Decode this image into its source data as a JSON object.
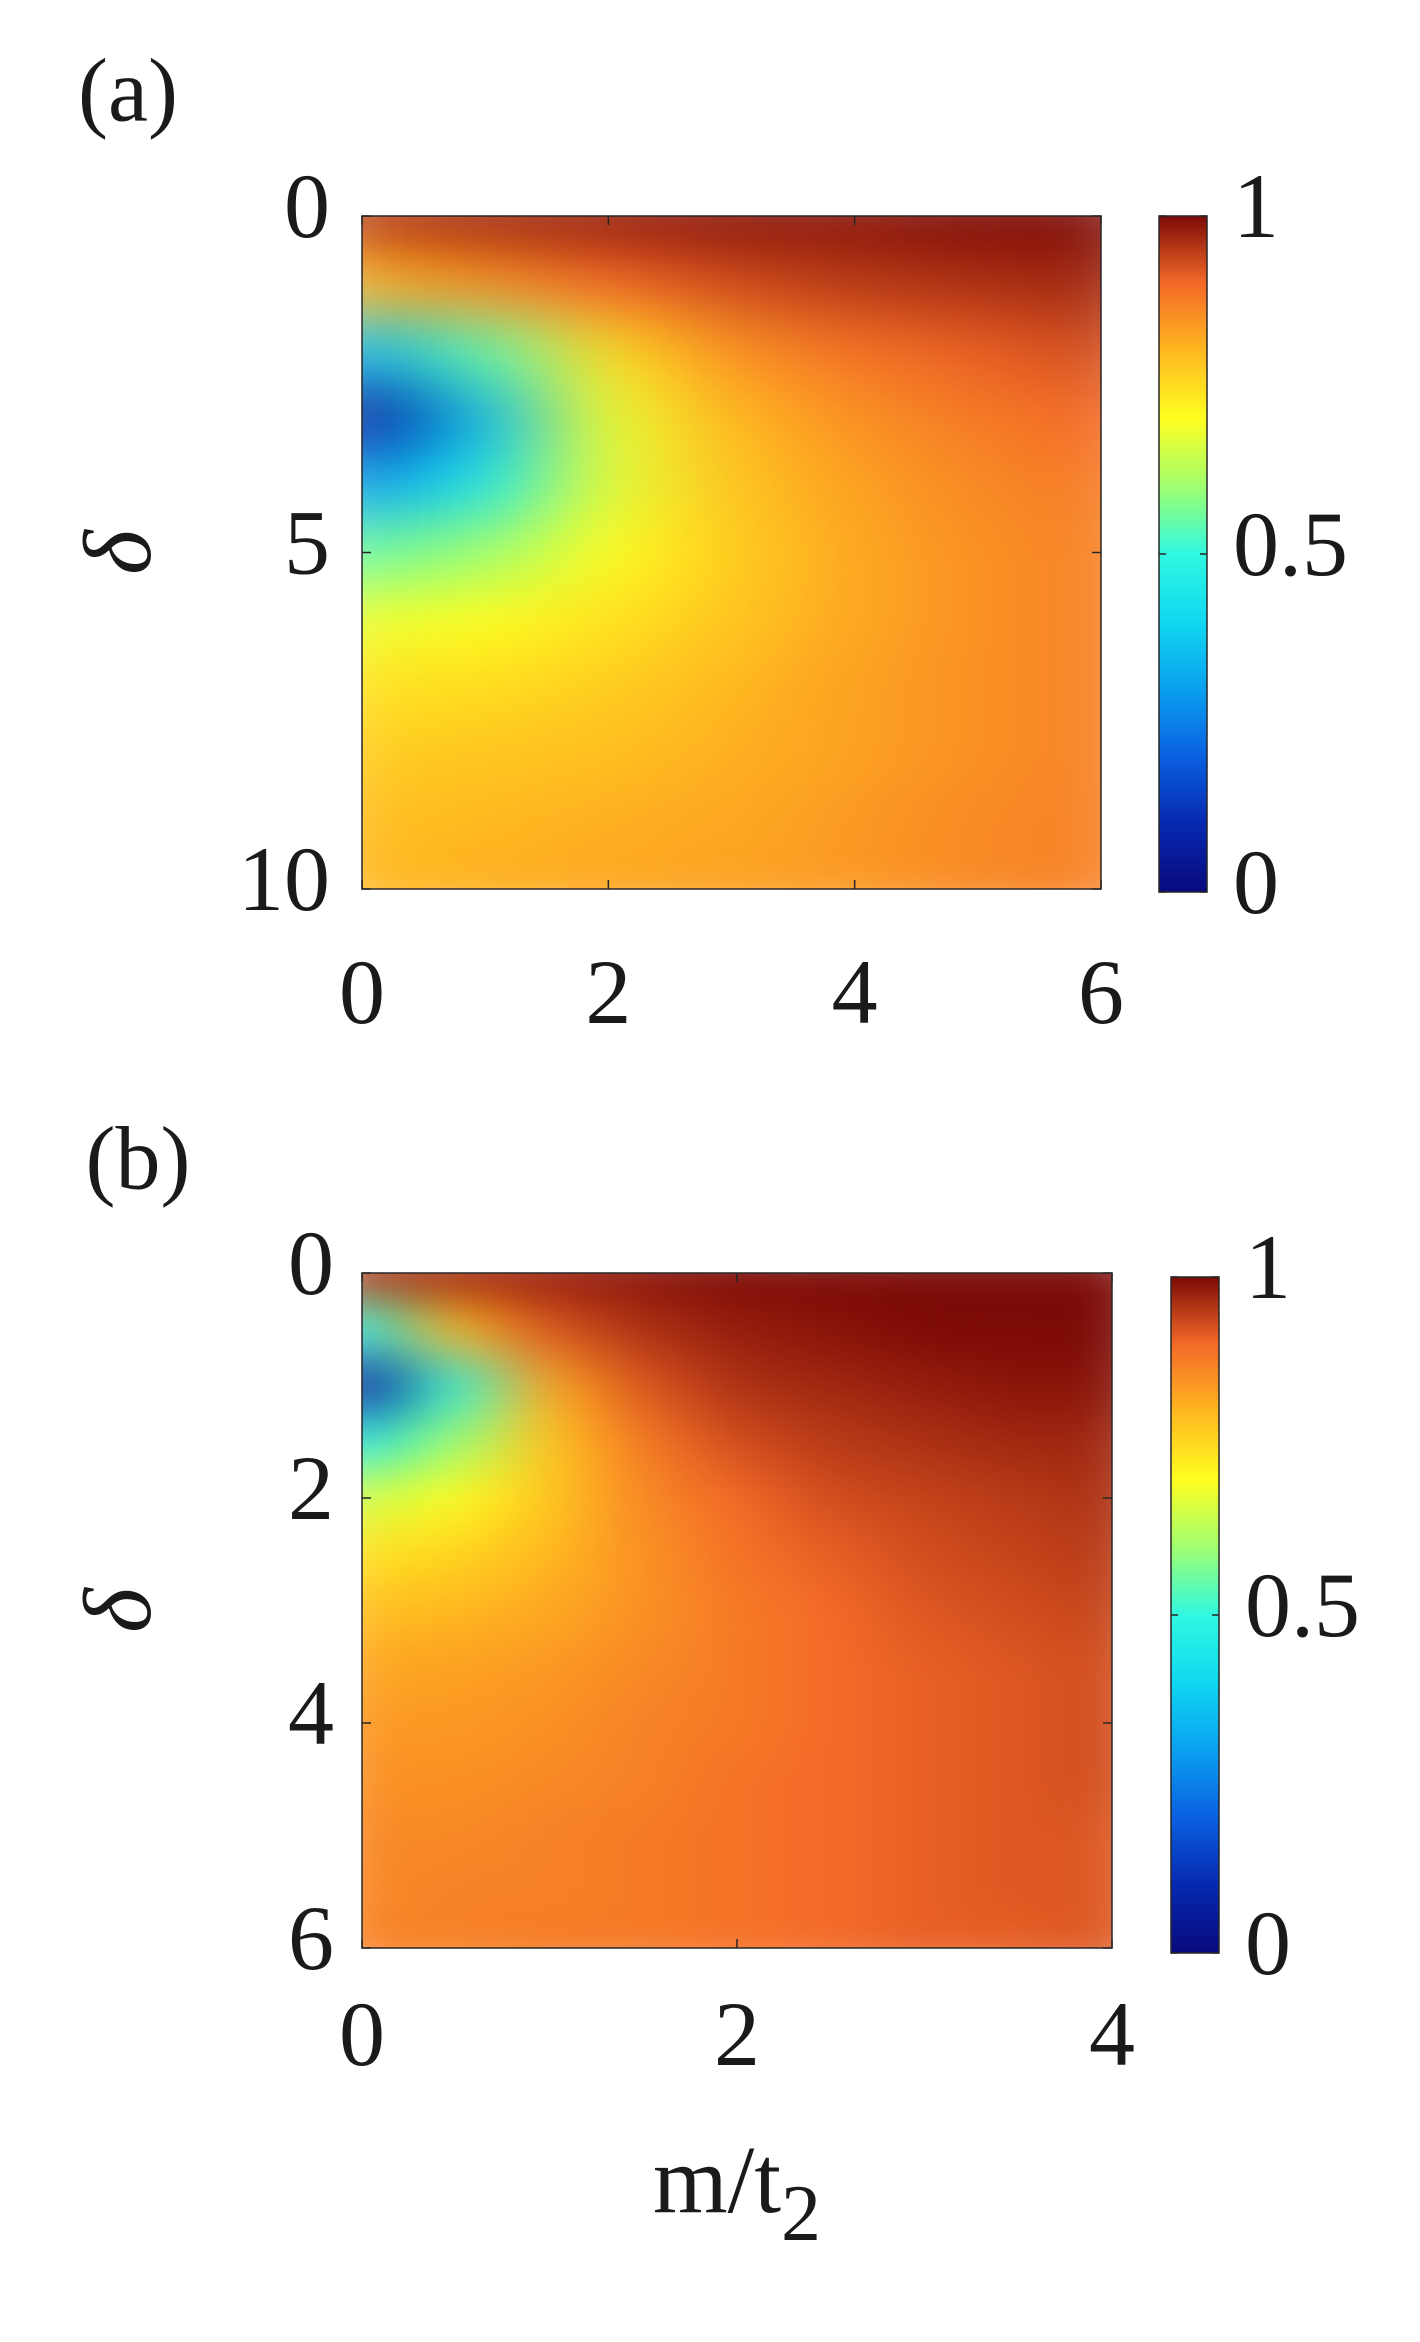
{
  "chart_data": [
    {
      "type": "heatmap",
      "label": "(a)",
      "ylabel": "δ",
      "x": [
        0,
        1,
        2,
        3,
        4,
        5,
        6
      ],
      "y": [
        0,
        1,
        2,
        3,
        4,
        5,
        6,
        7,
        8,
        9,
        10
      ],
      "values": [
        [
          0.95,
          0.97,
          0.98,
          0.99,
          0.99,
          1,
          1
        ],
        [
          0.8,
          0.85,
          0.9,
          0.93,
          0.95,
          0.96,
          0.97
        ],
        [
          0.35,
          0.55,
          0.75,
          0.85,
          0.89,
          0.91,
          0.93
        ],
        [
          0.05,
          0.35,
          0.68,
          0.8,
          0.85,
          0.88,
          0.9
        ],
        [
          0.3,
          0.45,
          0.67,
          0.78,
          0.83,
          0.86,
          0.88
        ],
        [
          0.55,
          0.6,
          0.7,
          0.77,
          0.82,
          0.85,
          0.87
        ],
        [
          0.68,
          0.7,
          0.74,
          0.78,
          0.82,
          0.85,
          0.87
        ],
        [
          0.74,
          0.75,
          0.77,
          0.8,
          0.83,
          0.85,
          0.87
        ],
        [
          0.77,
          0.78,
          0.79,
          0.81,
          0.83,
          0.85,
          0.87
        ],
        [
          0.79,
          0.8,
          0.81,
          0.82,
          0.84,
          0.86,
          0.87
        ],
        [
          0.8,
          0.81,
          0.82,
          0.83,
          0.84,
          0.86,
          0.87
        ]
      ],
      "xlim": [
        0,
        6
      ],
      "xticks": [
        0,
        2,
        4,
        6
      ],
      "ylim": [
        10,
        0
      ],
      "yticks": [
        0,
        5,
        10
      ],
      "clim": [
        0,
        1
      ],
      "cticks": [
        0,
        0.5,
        1
      ],
      "colormap": [
        "#080a7d",
        "#0628b0",
        "#0a60e0",
        "#0aa0f0",
        "#10d8f0",
        "#30f8e0",
        "#a0ff70",
        "#ffff20",
        "#ffb820",
        "#f46a28",
        "#7c0a06"
      ]
    },
    {
      "type": "heatmap",
      "label": "(b)",
      "ylabel": "δ",
      "xlabel": "m/t",
      "xlabel_subscript": "2",
      "x": [
        0,
        0.5,
        1,
        1.5,
        2,
        2.5,
        3,
        3.5,
        4
      ],
      "y": [
        0,
        0.5,
        1,
        1.5,
        2,
        2.5,
        3,
        3.5,
        4,
        4.5,
        5,
        5.5,
        6
      ],
      "values": [
        [
          0.95,
          0.97,
          0.98,
          0.99,
          1,
          1,
          1,
          1,
          1
        ],
        [
          0.5,
          0.8,
          0.92,
          0.96,
          0.98,
          0.99,
          1,
          1,
          1
        ],
        [
          0.05,
          0.5,
          0.82,
          0.92,
          0.96,
          0.97,
          0.98,
          0.99,
          0.99
        ],
        [
          0.45,
          0.6,
          0.78,
          0.88,
          0.93,
          0.95,
          0.96,
          0.97,
          0.97
        ],
        [
          0.65,
          0.7,
          0.78,
          0.86,
          0.9,
          0.93,
          0.94,
          0.95,
          0.96
        ],
        [
          0.74,
          0.76,
          0.8,
          0.85,
          0.89,
          0.91,
          0.93,
          0.94,
          0.95
        ],
        [
          0.79,
          0.8,
          0.82,
          0.85,
          0.88,
          0.9,
          0.92,
          0.93,
          0.94
        ],
        [
          0.82,
          0.83,
          0.84,
          0.86,
          0.88,
          0.9,
          0.91,
          0.92,
          0.93
        ],
        [
          0.84,
          0.84,
          0.85,
          0.87,
          0.88,
          0.9,
          0.91,
          0.92,
          0.93
        ],
        [
          0.85,
          0.85,
          0.86,
          0.87,
          0.89,
          0.9,
          0.91,
          0.92,
          0.93
        ],
        [
          0.86,
          0.86,
          0.87,
          0.88,
          0.89,
          0.9,
          0.91,
          0.92,
          0.92
        ],
        [
          0.86,
          0.87,
          0.87,
          0.88,
          0.89,
          0.9,
          0.91,
          0.92,
          0.92
        ],
        [
          0.87,
          0.87,
          0.88,
          0.88,
          0.89,
          0.9,
          0.91,
          0.91,
          0.92
        ]
      ],
      "xlim": [
        0,
        4
      ],
      "xticks": [
        0,
        2,
        4
      ],
      "ylim": [
        6,
        0
      ],
      "yticks": [
        0,
        2,
        4,
        6
      ],
      "clim": [
        0,
        1
      ],
      "cticks": [
        0,
        0.5,
        1
      ],
      "colormap": [
        "#080a7d",
        "#0628b0",
        "#0a60e0",
        "#0aa0f0",
        "#10d8f0",
        "#30f8e0",
        "#a0ff70",
        "#ffff20",
        "#ffb820",
        "#f46a28",
        "#7c0a06"
      ]
    }
  ]
}
